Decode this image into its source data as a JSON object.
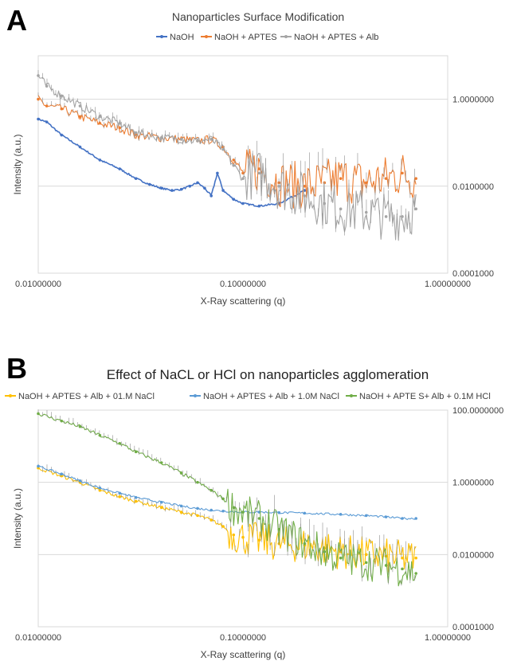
{
  "panels": [
    {
      "letter": "A"
    },
    {
      "letter": "B"
    }
  ],
  "chart_data": [
    {
      "type": "line",
      "title": "Nanoparticles Surface Modification",
      "xlabel": "X-Ray scattering (q)",
      "ylabel": "Intensity (a.u.)",
      "x_scale": "log",
      "y_scale": "log",
      "xlim": [
        0.01,
        1.0
      ],
      "ylim": [
        0.0001,
        10.0
      ],
      "x_ticks": [
        "0.01000000",
        "0.10000000",
        "1.00000000"
      ],
      "y_ticks": [
        "0.0001000",
        "0.0100000",
        "1.0000000"
      ],
      "y_axis_side": "right",
      "grid": "horizontal",
      "legend_position": "top",
      "series": [
        {
          "name": "NaOH",
          "color": "#4472c4",
          "x": [
            0.01,
            0.011,
            0.013,
            0.016,
            0.02,
            0.025,
            0.03,
            0.035,
            0.04,
            0.045,
            0.05,
            0.055,
            0.06,
            0.065,
            0.07,
            0.075,
            0.08,
            0.09,
            0.1,
            0.12,
            0.15,
            0.2
          ],
          "y": [
            0.35,
            0.3,
            0.15,
            0.08,
            0.04,
            0.025,
            0.015,
            0.011,
            0.009,
            0.008,
            0.0085,
            0.01,
            0.012,
            0.009,
            0.006,
            0.02,
            0.008,
            0.005,
            0.004,
            0.0035,
            0.004,
            0.008
          ]
        },
        {
          "name": "NaOH + APTES",
          "color": "#ed7d31",
          "x": [
            0.01,
            0.011,
            0.013,
            0.016,
            0.02,
            0.025,
            0.03,
            0.04,
            0.05,
            0.06,
            0.07,
            0.08,
            0.09,
            0.1,
            0.12,
            0.15,
            0.2,
            0.25,
            0.3,
            0.4,
            0.5,
            0.6,
            0.7
          ],
          "y": [
            1.0,
            0.7,
            0.6,
            0.4,
            0.28,
            0.22,
            0.15,
            0.13,
            0.12,
            0.11,
            0.12,
            0.08,
            0.04,
            0.02,
            0.025,
            0.012,
            0.01,
            0.012,
            0.015,
            0.012,
            0.015,
            0.02,
            0.015
          ]
        },
        {
          "name": "NaOH + APTES + Alb",
          "color": "#a5a5a5",
          "x": [
            0.01,
            0.011,
            0.013,
            0.016,
            0.02,
            0.025,
            0.03,
            0.04,
            0.05,
            0.06,
            0.07,
            0.08,
            0.09,
            0.1,
            0.12,
            0.15,
            0.2,
            0.25,
            0.3,
            0.4,
            0.5,
            0.6,
            0.7
          ],
          "y": [
            3.5,
            2.0,
            1.2,
            0.7,
            0.4,
            0.28,
            0.17,
            0.13,
            0.12,
            0.11,
            0.12,
            0.07,
            0.03,
            0.015,
            0.02,
            0.01,
            0.006,
            0.004,
            0.003,
            0.0025,
            0.002,
            0.002,
            0.003
          ]
        }
      ]
    },
    {
      "type": "line",
      "title": "Effect of NaCL or HCl on nanoparticles agglomeration",
      "xlabel": "X-Ray scattering (q)",
      "ylabel": "Intensity (a.u.)",
      "x_scale": "log",
      "y_scale": "log",
      "xlim": [
        0.01,
        1.0
      ],
      "ylim": [
        0.0001,
        100.0
      ],
      "x_ticks": [
        "0.01000000",
        "0.10000000",
        "1.00000000"
      ],
      "y_ticks": [
        "0.0001000",
        "0.0100000",
        "1.0000000",
        "100.0000000"
      ],
      "y_axis_side": "right",
      "grid": "horizontal",
      "legend_position": "top",
      "series": [
        {
          "name": "NaOH + APTES + Alb + 01.M NaCl",
          "color": "#ffc000",
          "x": [
            0.01,
            0.013,
            0.016,
            0.02,
            0.025,
            0.03,
            0.04,
            0.05,
            0.06,
            0.07,
            0.08,
            0.09,
            0.1,
            0.12,
            0.15,
            0.2,
            0.25,
            0.3,
            0.4,
            0.5,
            0.6,
            0.7
          ],
          "y": [
            2.5,
            1.5,
            1.0,
            0.6,
            0.4,
            0.3,
            0.2,
            0.15,
            0.12,
            0.09,
            0.06,
            0.035,
            0.03,
            0.025,
            0.02,
            0.018,
            0.015,
            0.012,
            0.01,
            0.009,
            0.008,
            0.008
          ]
        },
        {
          "name": "NaOH + APTES + Alb + 1.0M NaCl",
          "color": "#5b9bd5",
          "x": [
            0.01,
            0.013,
            0.016,
            0.02,
            0.025,
            0.03,
            0.04,
            0.05,
            0.06,
            0.07,
            0.08,
            0.1,
            0.12,
            0.15,
            0.2,
            0.3,
            0.4,
            0.5,
            0.6,
            0.7
          ],
          "y": [
            2.8,
            1.7,
            1.1,
            0.7,
            0.5,
            0.38,
            0.28,
            0.22,
            0.19,
            0.17,
            0.16,
            0.15,
            0.15,
            0.145,
            0.14,
            0.13,
            0.12,
            0.11,
            0.1,
            0.1
          ]
        },
        {
          "name": "NaOH + APTE S+ Alb + 0.1M  HCl",
          "color": "#70ad47",
          "x": [
            0.01,
            0.013,
            0.016,
            0.02,
            0.025,
            0.03,
            0.04,
            0.05,
            0.06,
            0.07,
            0.08,
            0.09,
            0.1,
            0.12,
            0.15,
            0.2,
            0.25,
            0.3,
            0.4,
            0.5,
            0.6,
            0.7
          ],
          "y": [
            80.0,
            50.0,
            35.0,
            20.0,
            12.0,
            7.0,
            3.5,
            1.8,
            1.0,
            0.6,
            0.35,
            0.2,
            0.15,
            0.1,
            0.05,
            0.02,
            0.012,
            0.008,
            0.006,
            0.005,
            0.004,
            0.003
          ]
        }
      ]
    }
  ]
}
